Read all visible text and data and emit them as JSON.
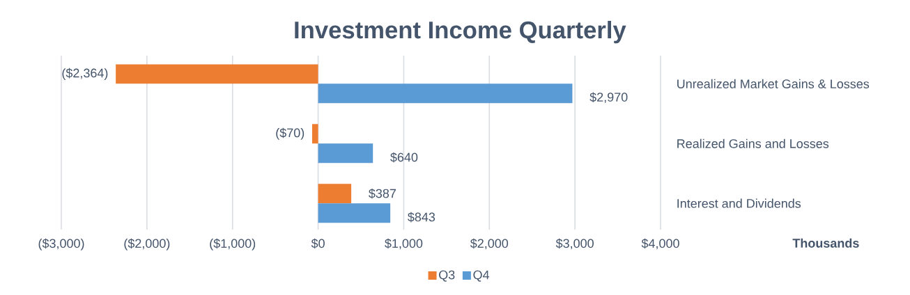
{
  "chart_data": {
    "type": "bar",
    "orientation": "horizontal",
    "title": "Investment Income Quarterly",
    "xlabel": "Thousands",
    "categories": [
      "Unrealized Market Gains & Losses",
      "Realized Gains and Losses",
      "Interest and Dividends"
    ],
    "series": [
      {
        "name": "Q3",
        "color": "#ed7d31",
        "values": [
          -2364,
          -70,
          387
        ],
        "value_labels": [
          "($2,364)",
          "($70)",
          "$387"
        ]
      },
      {
        "name": "Q4",
        "color": "#5b9bd5",
        "values": [
          2970,
          640,
          843
        ],
        "value_labels": [
          "$2,970",
          "$640",
          "$843"
        ]
      }
    ],
    "xlim": [
      -3000,
      4000
    ],
    "xticks": [
      {
        "value": -3000,
        "label": "($3,000)"
      },
      {
        "value": -2000,
        "label": "($2,000)"
      },
      {
        "value": -1000,
        "label": "($1,000)"
      },
      {
        "value": 0,
        "label": "$0"
      },
      {
        "value": 1000,
        "label": "$1,000"
      },
      {
        "value": 2000,
        "label": "$2,000"
      },
      {
        "value": 3000,
        "label": "$3,000"
      },
      {
        "value": 4000,
        "label": "$4,000"
      }
    ],
    "grid": "x",
    "legend": "bottom"
  }
}
